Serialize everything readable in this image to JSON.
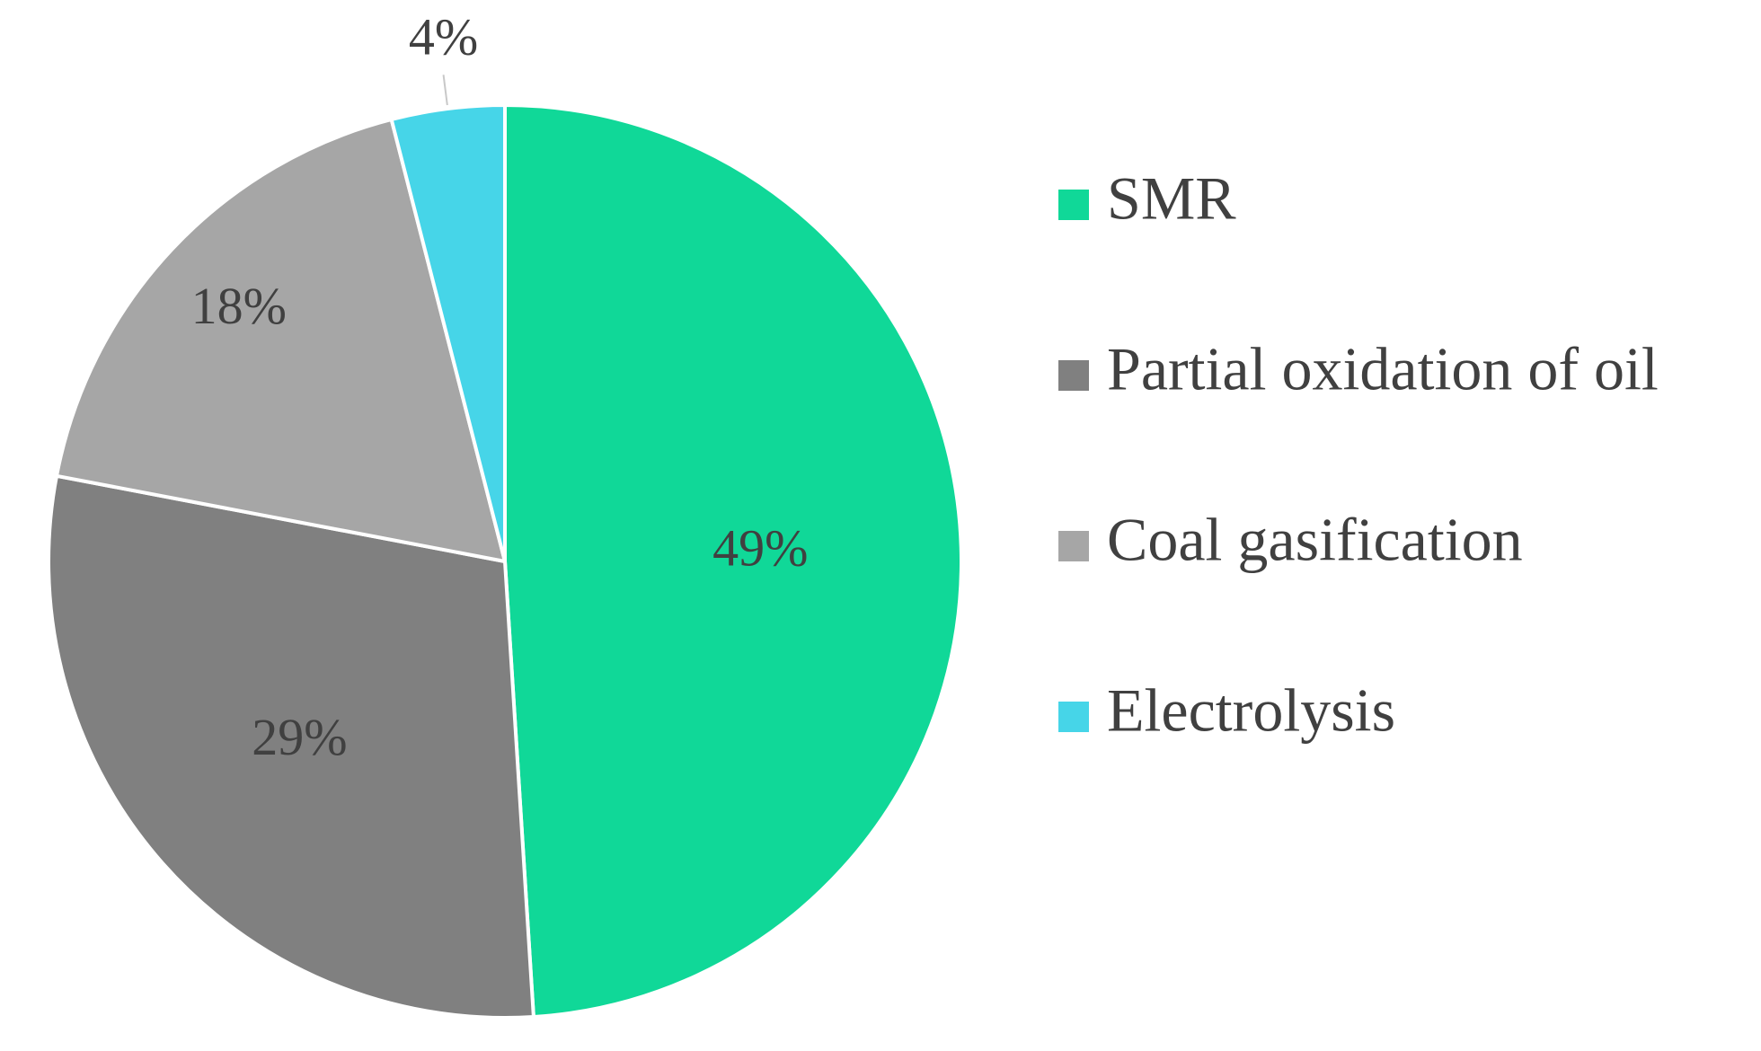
{
  "chart_data": {
    "type": "pie",
    "title": "",
    "categories": [
      "SMR",
      "Partial oxidation of oil",
      "Coal gasification",
      "Electrolysis"
    ],
    "values": [
      49,
      29,
      18,
      4
    ],
    "data_labels": [
      "49%",
      "29%",
      "18%",
      "4%"
    ],
    "colors": [
      "#10d898",
      "#808080",
      "#a6a6a6",
      "#46d5e8"
    ],
    "start_angle_deg": 0,
    "direction": "clockwise",
    "legend_position": "right"
  }
}
